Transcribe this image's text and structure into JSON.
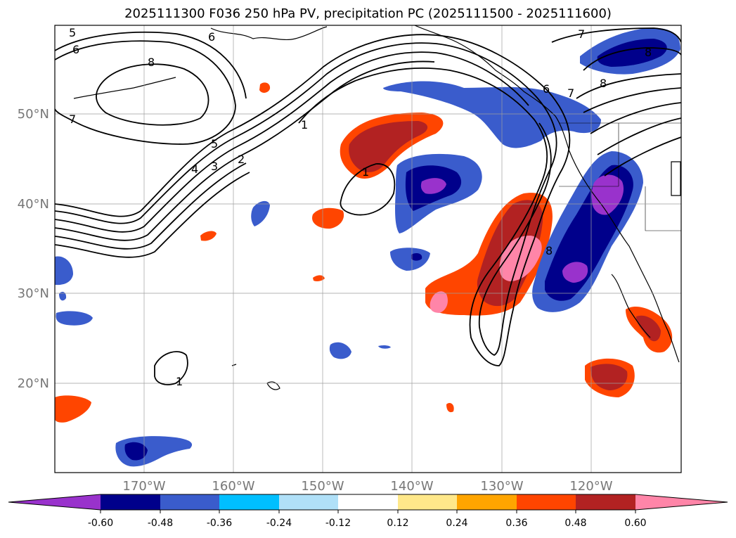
{
  "title": "2025111300 F036 250 hPa PV, precipitation PC (2025111500 - 2025111600)",
  "map": {
    "lon_labels": [
      "170°W",
      "160°W",
      "150°W",
      "140°W",
      "130°W",
      "120°W"
    ],
    "lat_labels": [
      "50°N",
      "40°N",
      "30°N",
      "20°N"
    ],
    "contour_labels": [
      "5",
      "6",
      "8",
      "7",
      "6",
      "7",
      "6",
      "7",
      "8",
      "8",
      "5",
      "4",
      "3",
      "2",
      "1",
      "1",
      "1",
      "8"
    ]
  },
  "colorbar": {
    "ticks": [
      "-0.60",
      "-0.48",
      "-0.36",
      "-0.24",
      "-0.12",
      "0.12",
      "0.24",
      "0.36",
      "0.48",
      "0.60"
    ],
    "colors": [
      "#9932cc",
      "#00008b",
      "#3a5ccc",
      "#00bfff",
      "#b0e0f8",
      "#ffffff",
      "#ffe88a",
      "#ffa500",
      "#ff4500",
      "#b22222",
      "#ff85a8"
    ]
  }
}
